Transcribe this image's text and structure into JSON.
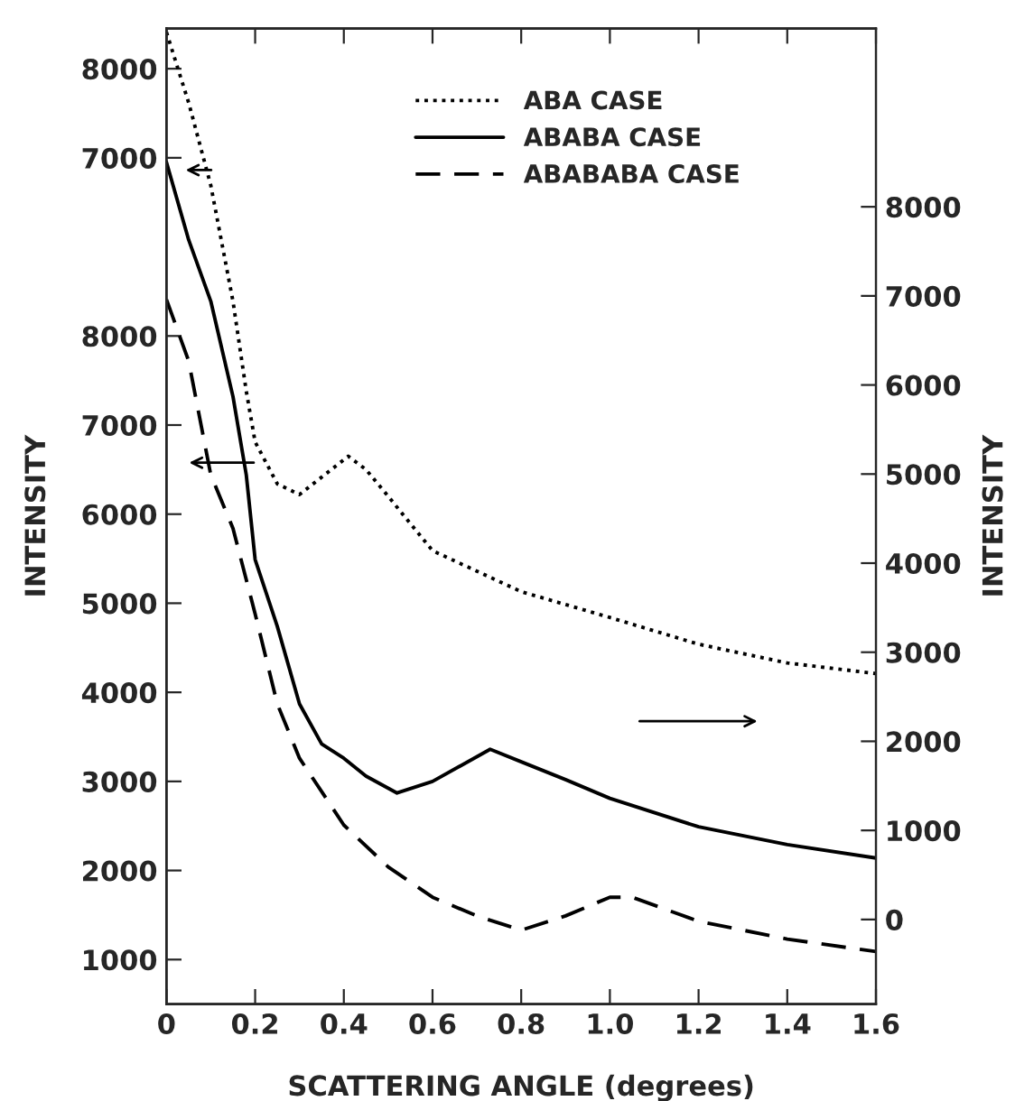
{
  "chart_data": {
    "type": "line",
    "xlabel": "SCATTERING ANGLE (degrees)",
    "ylabel": "INTENSITY",
    "y2label": "INTENSITY",
    "xlim": [
      0,
      1.6
    ],
    "xticks": [
      0,
      0.2,
      0.4,
      0.6,
      0.8,
      {
        "value": 1.0,
        "label": "1.0"
      },
      1.2,
      1.4,
      1.6
    ],
    "ylim": [
      500,
      11450
    ],
    "yticks": [
      1000,
      2000,
      3000,
      4000,
      5000,
      6000,
      7000,
      8000
    ],
    "y2lim": [
      -950,
      10000
    ],
    "y2ticks": [
      0,
      1000,
      2000,
      3000,
      4000,
      5000,
      6000,
      7000,
      8000
    ],
    "y3lim": [
      -2500,
      8450
    ],
    "y3ticks": [
      7000,
      8000
    ],
    "legend": "top",
    "grid": false,
    "series": [
      {
        "name": "ABA CASE",
        "color": "#000000",
        "axis": "y3",
        "line_style": "dotted",
        "x": [
          0,
          0.05,
          0.1,
          0.15,
          0.18,
          0.2,
          0.25,
          0.3,
          0.41,
          0.45,
          0.5,
          0.6,
          0.8,
          1.0,
          1.2,
          1.4,
          1.6
        ],
        "values": [
          8410,
          7620,
          6690,
          5390,
          4380,
          3810,
          3340,
          3220,
          3650,
          3500,
          3200,
          2590,
          2130,
          1840,
          1540,
          1330,
          1210
        ]
      },
      {
        "name": "ABABA CASE",
        "color": "#000000",
        "axis": "y2",
        "line_style": "solid",
        "x": [
          0,
          0.05,
          0.1,
          0.15,
          0.18,
          0.2,
          0.25,
          0.3,
          0.35,
          0.4,
          0.45,
          0.52,
          0.6,
          0.73,
          0.8,
          0.9,
          1.0,
          1.2,
          1.4,
          1.6
        ],
        "values": [
          8500,
          7630,
          6940,
          5870,
          4990,
          4040,
          3290,
          2420,
          1970,
          1810,
          1610,
          1420,
          1550,
          1910,
          1770,
          1570,
          1360,
          1040,
          840,
          690
        ]
      },
      {
        "name": "ABABABA CASE",
        "color": "#000000",
        "axis": "y",
        "line_style": "dashed",
        "x": [
          0,
          0.05,
          0.1,
          0.15,
          0.2,
          0.25,
          0.3,
          0.4,
          0.5,
          0.6,
          0.7,
          0.8,
          0.9,
          1.0,
          1.05,
          1.2,
          1.4,
          1.6
        ],
        "values": [
          8410,
          7720,
          6440,
          5840,
          4880,
          3870,
          3260,
          2510,
          2040,
          1700,
          1490,
          1330,
          1490,
          1700,
          1700,
          1430,
          1230,
          1090
        ]
      }
    ]
  }
}
